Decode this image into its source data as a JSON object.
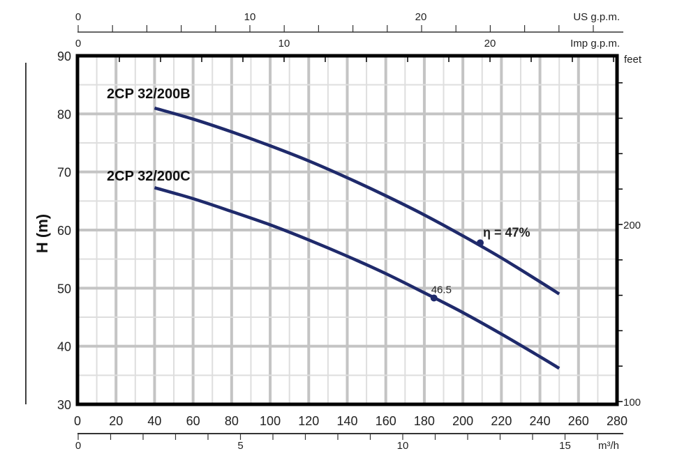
{
  "chart_data": {
    "type": "line",
    "xlabel": "",
    "ylabel": "H (m)",
    "xlim": [
      0,
      280
    ],
    "ylim": [
      30,
      90
    ],
    "x_ticks": [
      "0",
      "20",
      "40",
      "60",
      "80",
      "100",
      "120",
      "140",
      "160",
      "180",
      "200",
      "220",
      "240",
      "260",
      "280"
    ],
    "y_ticks": [
      "30",
      "40",
      "50",
      "60",
      "70",
      "80",
      "90"
    ],
    "grid": true,
    "secondary_axes": {
      "us_gpm": {
        "label": "US g.p.m.",
        "ticks": [
          "0",
          "10",
          "20"
        ]
      },
      "imp_gpm": {
        "label": "Imp g.p.m.",
        "ticks": [
          "0",
          "10",
          "20"
        ]
      },
      "m3h": {
        "label": "m³/h",
        "ticks": [
          "0",
          "5",
          "10",
          "15"
        ]
      },
      "feet": {
        "label": "feet",
        "ticks": [
          "100",
          "200"
        ]
      }
    },
    "series": [
      {
        "name": "2CP 32/200B",
        "x": [
          40,
          60,
          80,
          100,
          120,
          140,
          160,
          180,
          200,
          220,
          240,
          250
        ],
        "y": [
          81,
          79.1,
          76.9,
          74.5,
          71.9,
          69.0,
          65.9,
          62.6,
          59.0,
          55.2,
          51.1,
          49.0
        ],
        "marker": {
          "x": 209,
          "y": 57.8,
          "label": "η = 47%"
        }
      },
      {
        "name": "2CP 32/200C",
        "x": [
          40,
          60,
          80,
          100,
          120,
          140,
          160,
          180,
          200,
          220,
          240,
          250
        ],
        "y": [
          67.3,
          65.4,
          63.2,
          60.9,
          58.3,
          55.5,
          52.5,
          49.2,
          45.8,
          42.1,
          38.2,
          36.2
        ],
        "marker": {
          "x": 185,
          "y": 48.3,
          "label": "46.5"
        }
      }
    ],
    "colors": {
      "curve": "#1f2a6b",
      "grid_major": "#c4c4c4",
      "grid_minor": "#dedede"
    }
  }
}
